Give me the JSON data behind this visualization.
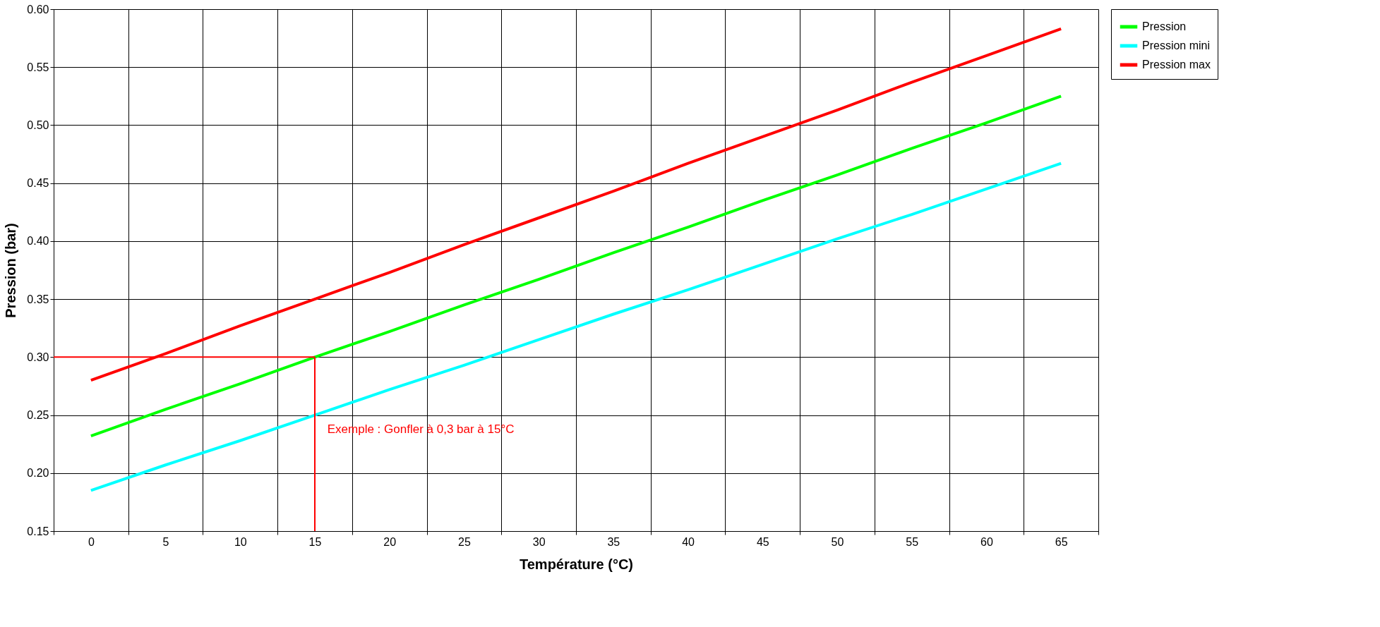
{
  "chart_data": {
    "type": "line",
    "xlabel": "Température (°C)",
    "ylabel": "Pression (bar)",
    "categories": [
      "0",
      "5",
      "10",
      "15",
      "20",
      "25",
      "30",
      "35",
      "40",
      "45",
      "50",
      "55",
      "60",
      "65"
    ],
    "series": [
      {
        "name": "Pression",
        "color": "#00ff00",
        "values": [
          0.232,
          0.255,
          0.277,
          0.3,
          0.322,
          0.345,
          0.367,
          0.39,
          0.412,
          0.435,
          0.457,
          0.48,
          0.502,
          0.525
        ]
      },
      {
        "name": "Pression mini",
        "color": "#00ffff",
        "values": [
          0.185,
          0.207,
          0.228,
          0.25,
          0.272,
          0.293,
          0.315,
          0.337,
          0.358,
          0.38,
          0.402,
          0.423,
          0.445,
          0.467
        ]
      },
      {
        "name": "Pression max",
        "color": "#ff0000",
        "values": [
          0.28,
          0.303,
          0.327,
          0.35,
          0.373,
          0.397,
          0.42,
          0.443,
          0.467,
          0.49,
          0.513,
          0.537,
          0.56,
          0.583
        ]
      }
    ],
    "ylim": [
      0.15,
      0.6
    ],
    "yticks": [
      0.15,
      {
        "value": 0.2,
        "label": "0.20"
      },
      0.25,
      {
        "value": 0.3,
        "label": "0.30"
      },
      0.35,
      {
        "value": 0.4,
        "label": "0.40"
      },
      0.45,
      {
        "value": 0.5,
        "label": "0.50"
      },
      0.55,
      {
        "value": 0.6,
        "label": "0.60"
      }
    ],
    "ref_lines": [
      {
        "axis": "y",
        "value": 0.3,
        "color": "#ff0000"
      },
      {
        "axis": "x",
        "value": "15",
        "color": "#ff0000"
      }
    ],
    "annotations": [
      "Exemple : Gonfler à 0,3 bar à 15°C"
    ],
    "grid": true,
    "legend": "right",
    "marker": "none",
    "line_style": "solid"
  }
}
